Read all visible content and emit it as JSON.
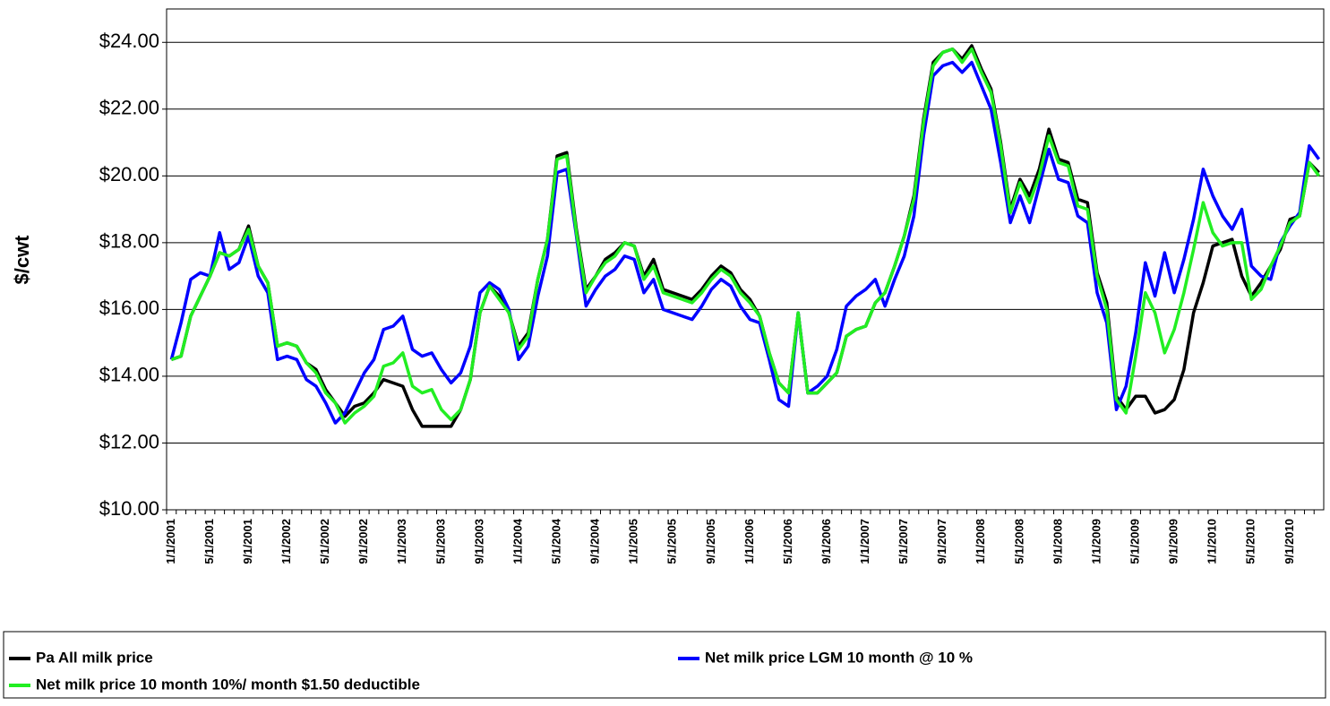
{
  "chart_data": {
    "type": "line",
    "y_label": "$/cwt",
    "categories": [
      "1/1/2001",
      null,
      null,
      null,
      "5/1/2001",
      null,
      null,
      null,
      "9/1/2001",
      null,
      null,
      null,
      "1/1/2002",
      null,
      null,
      null,
      "5/1/2002",
      null,
      null,
      null,
      "9/1/2002",
      null,
      null,
      null,
      "1/1/2003",
      null,
      null,
      null,
      "5/1/2003",
      null,
      null,
      null,
      "9/1/2003",
      null,
      null,
      null,
      "1/1/2004",
      null,
      null,
      null,
      "5/1/2004",
      null,
      null,
      null,
      "9/1/2004",
      null,
      null,
      null,
      "1/1/2005",
      null,
      null,
      null,
      "5/1/2005",
      null,
      null,
      null,
      "9/1/2005",
      null,
      null,
      null,
      "1/1/2006",
      null,
      null,
      null,
      "5/1/2006",
      null,
      null,
      null,
      "9/1/2006",
      null,
      null,
      null,
      "1/1/2007",
      null,
      null,
      null,
      "5/1/2007",
      null,
      null,
      null,
      "9/1/2007",
      null,
      null,
      null,
      "1/1/2008",
      null,
      null,
      null,
      "5/1/2008",
      null,
      null,
      null,
      "9/1/2008",
      null,
      null,
      null,
      "1/1/2009",
      null,
      null,
      null,
      "5/1/2009",
      null,
      null,
      null,
      "9/1/2009",
      null,
      null,
      null,
      "1/1/2010",
      null,
      null,
      null,
      "5/1/2010",
      null,
      null,
      null,
      "9/1/2010",
      null,
      null,
      null
    ],
    "series": [
      {
        "name": "Pa All milk price",
        "color": "#000000",
        "values": [
          14.5,
          14.6,
          15.8,
          16.4,
          17.0,
          17.7,
          17.6,
          17.8,
          18.5,
          17.3,
          16.8,
          14.9,
          15.0,
          14.9,
          14.4,
          14.2,
          13.6,
          13.2,
          12.8,
          13.1,
          13.2,
          13.5,
          13.9,
          13.8,
          13.7,
          13.0,
          12.5,
          12.5,
          12.5,
          12.5,
          13.0,
          13.9,
          15.9,
          16.7,
          16.4,
          15.9,
          14.9,
          15.3,
          16.9,
          18.1,
          20.6,
          20.7,
          18.4,
          16.6,
          17.0,
          17.5,
          17.7,
          18.0,
          17.9,
          17.0,
          17.5,
          16.6,
          16.5,
          16.4,
          16.3,
          16.6,
          17.0,
          17.3,
          17.1,
          16.6,
          16.3,
          15.8,
          14.7,
          13.8,
          13.5,
          15.9,
          13.5,
          13.5,
          13.8,
          14.1,
          15.2,
          15.4,
          15.5,
          16.2,
          16.5,
          17.3,
          18.2,
          19.4,
          21.7,
          23.4,
          23.7,
          23.8,
          23.5,
          23.9,
          23.2,
          22.6,
          21.0,
          19.0,
          19.9,
          19.4,
          20.2,
          21.4,
          20.5,
          20.4,
          19.3,
          19.2,
          17.1,
          16.2,
          13.4,
          13.0,
          13.4,
          13.4,
          12.9,
          13.0,
          13.3,
          14.2,
          15.9,
          16.8,
          17.9,
          18.0,
          18.1,
          17.0,
          16.4,
          16.8,
          17.3,
          17.8,
          18.7,
          18.8,
          20.4,
          20.1
        ]
      },
      {
        "name": "Net milk  price LGM 10 month @ 10 %",
        "color": "#0000ff",
        "values": [
          14.5,
          15.6,
          16.9,
          17.1,
          17.0,
          18.3,
          17.2,
          17.4,
          18.2,
          17.0,
          16.5,
          14.5,
          14.6,
          14.5,
          13.9,
          13.7,
          13.2,
          12.6,
          12.9,
          13.5,
          14.1,
          14.5,
          15.4,
          15.5,
          15.8,
          14.8,
          14.6,
          14.7,
          14.2,
          13.8,
          14.1,
          14.9,
          16.5,
          16.8,
          16.6,
          16.0,
          14.5,
          14.9,
          16.4,
          17.6,
          20.1,
          20.2,
          18.2,
          16.1,
          16.6,
          17.0,
          17.2,
          17.6,
          17.5,
          16.5,
          16.9,
          16.0,
          15.9,
          15.8,
          15.7,
          16.1,
          16.6,
          16.9,
          16.7,
          16.1,
          15.7,
          15.6,
          14.5,
          13.3,
          13.1,
          15.9,
          13.5,
          13.7,
          14.0,
          14.8,
          16.1,
          16.4,
          16.6,
          16.9,
          16.1,
          16.9,
          17.6,
          18.8,
          21.2,
          23.0,
          23.3,
          23.4,
          23.1,
          23.4,
          22.7,
          22.0,
          20.4,
          18.6,
          19.4,
          18.6,
          19.7,
          20.8,
          19.9,
          19.8,
          18.8,
          18.6,
          16.5,
          15.6,
          13.0,
          13.7,
          15.3,
          17.4,
          16.4,
          17.7,
          16.5,
          17.5,
          18.7,
          20.2,
          19.4,
          18.8,
          18.4,
          19.0,
          17.3,
          17.0,
          16.9,
          18.0,
          18.5,
          18.9,
          20.9,
          20.5
        ]
      },
      {
        "name": "Net milk price 10 month 10%/ month $1.50 deductible",
        "color": "#22ee22",
        "values": [
          14.5,
          14.6,
          15.8,
          16.4,
          17.0,
          17.7,
          17.6,
          17.8,
          18.4,
          17.3,
          16.8,
          14.9,
          15.0,
          14.9,
          14.4,
          14.1,
          13.5,
          13.2,
          12.6,
          12.9,
          13.1,
          13.4,
          14.3,
          14.4,
          14.7,
          13.7,
          13.5,
          13.6,
          13.0,
          12.7,
          13.0,
          13.9,
          15.9,
          16.7,
          16.3,
          15.9,
          14.8,
          15.2,
          16.9,
          18.1,
          20.5,
          20.6,
          18.3,
          16.5,
          17.0,
          17.4,
          17.6,
          18.0,
          17.9,
          16.9,
          17.3,
          16.5,
          16.4,
          16.3,
          16.2,
          16.5,
          16.9,
          17.2,
          17.0,
          16.5,
          16.2,
          15.8,
          14.7,
          13.8,
          13.5,
          15.9,
          13.5,
          13.5,
          13.8,
          14.1,
          15.2,
          15.4,
          15.5,
          16.2,
          16.5,
          17.3,
          18.2,
          19.3,
          21.6,
          23.3,
          23.7,
          23.8,
          23.4,
          23.8,
          23.1,
          22.5,
          20.9,
          18.9,
          19.8,
          19.2,
          20.0,
          21.2,
          20.4,
          20.3,
          19.1,
          19.0,
          17.0,
          16.0,
          13.3,
          12.9,
          14.6,
          16.5,
          15.9,
          14.7,
          15.4,
          16.5,
          17.8,
          19.2,
          18.3,
          17.9,
          18.0,
          18.0,
          16.3,
          16.6,
          17.3,
          17.9,
          18.6,
          18.8,
          20.4,
          20.0
        ]
      }
    ],
    "ylim": [
      10,
      25
    ],
    "yticks": [
      {
        "value": 10,
        "label": "$10.00"
      },
      {
        "value": 12,
        "label": "$12.00"
      },
      {
        "value": 14,
        "label": "$14.00"
      },
      {
        "value": 16,
        "label": "$16.00"
      },
      {
        "value": 18,
        "label": "$18.00"
      },
      {
        "value": 20,
        "label": "$20.00"
      },
      {
        "value": 22,
        "label": "$22.00"
      },
      {
        "value": 24,
        "label": "$24.00"
      }
    ],
    "grid": true,
    "legend": "bottom"
  }
}
